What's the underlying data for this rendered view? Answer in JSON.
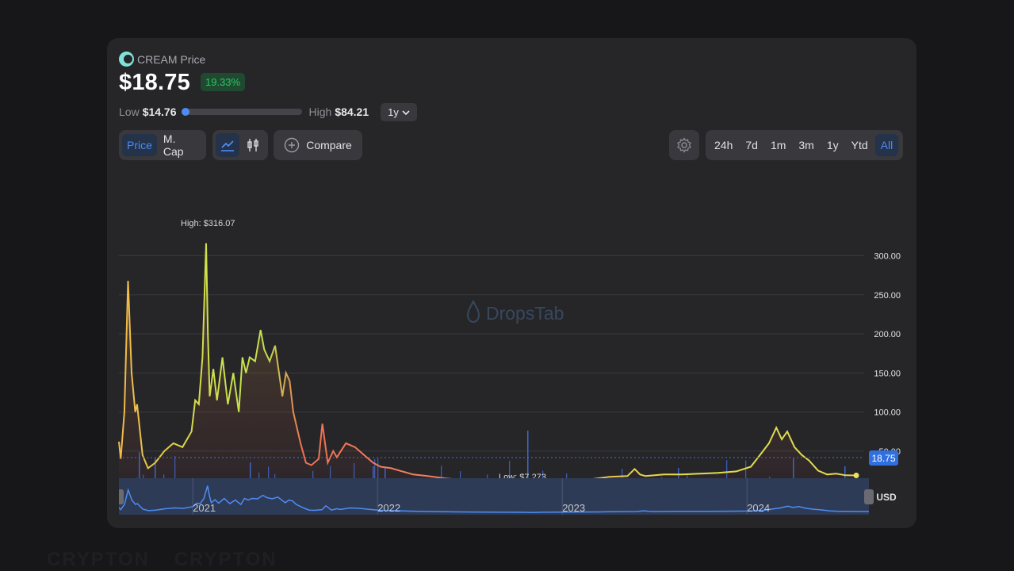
{
  "coin": {
    "title": "CREAM Price",
    "price": "$18.75",
    "change": "19.33%"
  },
  "range": {
    "low_label": "Low",
    "low_value": "$14.76",
    "high_label": "High",
    "high_value": "$84.21",
    "period": "1y",
    "position": 0.0
  },
  "metric_tabs": [
    "Price",
    "M. Cap"
  ],
  "compare_label": "Compare",
  "timeframes": [
    "24h",
    "7d",
    "1m",
    "3m",
    "1y",
    "Ytd",
    "All"
  ],
  "active_timeframe": "All",
  "watermark": [
    "CRYPTON",
    "CRYPTON"
  ],
  "chart_data": {
    "type": "area",
    "x_tick_labels": [
      "2021",
      "2022",
      "2023",
      "2024"
    ],
    "y_tick_labels": [
      "300.00",
      "250.00",
      "200.00",
      "150.00",
      "100.00",
      "50.00"
    ],
    "ylim": [
      0,
      330
    ],
    "currency_label": "USD",
    "current_price_label": "18.75",
    "high_annotation": "High: $316.07",
    "low_annotation": "Low: $7.273",
    "watermark_text": "DropsTab",
    "navigator_labels": [
      "2021",
      "2022",
      "2023",
      "2024"
    ],
    "colors": {
      "line_hot": "#f07050",
      "line_warm": "#f0c050",
      "line_cool": "#d8e050",
      "volume": "#3a66d0",
      "navigator": "#3d7be0",
      "price_badge": "#2f6fe0"
    },
    "series": [
      {
        "name": "Price",
        "x": [
          2020.6,
          2020.61,
          2020.63,
          2020.65,
          2020.67,
          2020.69,
          2020.7,
          2020.73,
          2020.76,
          2020.8,
          2020.85,
          2020.9,
          2020.95,
          2021.0,
          2021.02,
          2021.04,
          2021.06,
          2021.08,
          2021.09,
          2021.1,
          2021.12,
          2021.14,
          2021.17,
          2021.2,
          2021.23,
          2021.26,
          2021.28,
          2021.3,
          2021.32,
          2021.35,
          2021.38,
          2021.4,
          2021.43,
          2021.46,
          2021.5,
          2021.52,
          2021.54,
          2021.56,
          2021.6,
          2021.63,
          2021.66,
          2021.7,
          2021.72,
          2021.75,
          2021.78,
          2021.8,
          2021.85,
          2021.9,
          2021.95,
          2022.0,
          2022.04,
          2022.1,
          2022.16,
          2022.22,
          2022.3,
          2022.4,
          2022.5,
          2022.6,
          2022.7,
          2022.8,
          2022.83,
          2022.9,
          2023.0,
          2023.1,
          2023.2,
          2023.3,
          2023.4,
          2023.44,
          2023.47,
          2023.5,
          2023.6,
          2023.7,
          2023.8,
          2023.9,
          2024.0,
          2024.08,
          2024.13,
          2024.18,
          2024.22,
          2024.25,
          2024.28,
          2024.32,
          2024.36,
          2024.4,
          2024.45,
          2024.5,
          2024.55,
          2024.6,
          2024.66
        ],
        "y": [
          62,
          40,
          100,
          268,
          150,
          100,
          110,
          45,
          28,
          35,
          50,
          60,
          55,
          75,
          115,
          110,
          170,
          316,
          200,
          120,
          155,
          115,
          170,
          110,
          150,
          100,
          170,
          150,
          170,
          165,
          205,
          180,
          165,
          185,
          120,
          150,
          140,
          100,
          60,
          35,
          32,
          40,
          85,
          35,
          50,
          42,
          60,
          55,
          45,
          35,
          30,
          28,
          24,
          20,
          18,
          15,
          13,
          12,
          10,
          9,
          7.273,
          10,
          12,
          13,
          14,
          17,
          18,
          27,
          20,
          18,
          20,
          20,
          21,
          22,
          24,
          30,
          45,
          60,
          80,
          65,
          75,
          55,
          45,
          38,
          25,
          20,
          21,
          19,
          18.75
        ]
      }
    ]
  }
}
